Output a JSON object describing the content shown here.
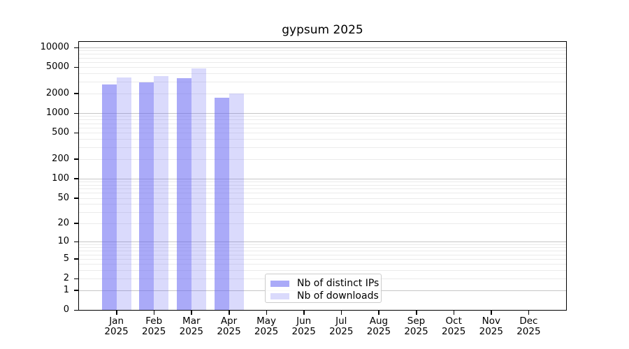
{
  "title": "gypsum 2025",
  "chart_data": {
    "type": "bar",
    "title": "gypsum 2025",
    "categories": [
      "Jan 2025",
      "Feb 2025",
      "Mar 2025",
      "Apr 2025",
      "May 2025",
      "Jun 2025",
      "Jul 2025",
      "Aug 2025",
      "Sep 2025",
      "Oct 2025",
      "Nov 2025",
      "Dec 2025"
    ],
    "series": [
      {
        "name": "Nb of distinct IPs",
        "color": "rgba(100,100,243,0.55)",
        "values": [
          2750,
          2950,
          3400,
          1700,
          null,
          null,
          null,
          null,
          null,
          null,
          null,
          null
        ]
      },
      {
        "name": "Nb of downloads",
        "color": "rgba(100,100,243,0.24)",
        "values": [
          3500,
          3650,
          4800,
          2000,
          null,
          null,
          null,
          null,
          null,
          null,
          null,
          null
        ]
      }
    ],
    "yscale": "log10(1+v)",
    "yticks": [
      0,
      1,
      2,
      5,
      10,
      20,
      50,
      100,
      200,
      500,
      1000,
      2000,
      5000,
      10000
    ],
    "ylim": [
      0,
      12000
    ],
    "xlabel": "",
    "ylabel": "",
    "grid": true,
    "grid_major_color": "#c6c6c6",
    "grid_minor_color": "#ebebeb",
    "legend_location": "lower center",
    "background_color": "#ffffff",
    "spine_color": "#000000"
  }
}
